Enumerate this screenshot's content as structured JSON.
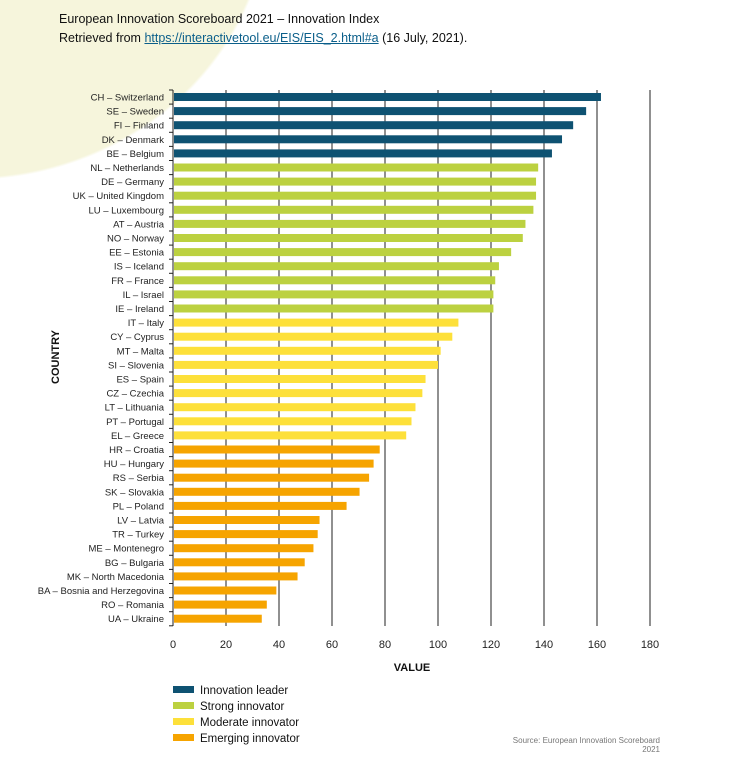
{
  "header": {
    "title": "European Innovation Scoreboard 2021 – Innovation Index",
    "retrieved_prefix": "Retrieved from ",
    "link": "https://interactivetool.eu/EIS/EIS_2.html#a",
    "retrieved_suffix": " (16 July, 2021)."
  },
  "source": "Source: European Innovation Scoreboard 2021",
  "chart_data": {
    "type": "bar",
    "orientation": "horizontal",
    "xlabel": "VALUE",
    "ylabel": "COUNTRY",
    "xlim": [
      0,
      180
    ],
    "xticks": [
      0,
      20,
      40,
      60,
      80,
      100,
      120,
      140,
      160,
      180
    ],
    "grid": true,
    "legend_placement": "bottom-left",
    "groups": [
      {
        "name": "Innovation leader",
        "color": "#0e5272"
      },
      {
        "name": "Strong innovator",
        "color": "#bcd140"
      },
      {
        "name": "Moderate innovator",
        "color": "#fde03a"
      },
      {
        "name": "Emerging innovator",
        "color": "#f6a400"
      }
    ],
    "categories": [
      "CH – Switzerland",
      "SE – Sweden",
      "FI – Finland",
      "DK – Denmark",
      "BE – Belgium",
      "NL – Netherlands",
      "DE – Germany",
      "UK – United Kingdom",
      "LU – Luxembourg",
      "AT – Austria",
      "NO – Norway",
      "EE – Estonia",
      "IS – Iceland",
      "FR – France",
      "IL – Israel",
      "IE – Ireland",
      "IT – Italy",
      "CY – Cyprus",
      "MT – Malta",
      "SI – Slovenia",
      "ES – Spain",
      "CZ – Czechia",
      "LT – Lithuania",
      "PT – Portugal",
      "EL – Greece",
      "HR – Croatia",
      "HU – Hungary",
      "RS – Serbia",
      "SK – Slovakia",
      "PL – Poland",
      "LV – Latvia",
      "TR – Turkey",
      "ME – Montenegro",
      "BG – Bulgaria",
      "MK – North Macedonia",
      "BA – Bosnia and Herzegovina",
      "RO – Romania",
      "UA – Ukraine"
    ],
    "values": [
      161.5,
      155.9,
      151,
      146.8,
      143,
      137.8,
      137,
      137,
      136,
      133,
      132,
      127.6,
      123,
      121.6,
      120.9,
      120.9,
      107.7,
      105.4,
      101,
      100,
      95.3,
      94.1,
      91.5,
      90,
      88,
      78,
      75.7,
      74,
      70.4,
      65.5,
      55.3,
      54.6,
      53,
      49.7,
      47,
      39,
      35.4,
      33.5
    ],
    "group_index": [
      0,
      0,
      0,
      0,
      0,
      1,
      1,
      1,
      1,
      1,
      1,
      1,
      1,
      1,
      1,
      1,
      2,
      2,
      2,
      2,
      2,
      2,
      2,
      2,
      2,
      3,
      3,
      3,
      3,
      3,
      3,
      3,
      3,
      3,
      3,
      3,
      3,
      3
    ]
  }
}
